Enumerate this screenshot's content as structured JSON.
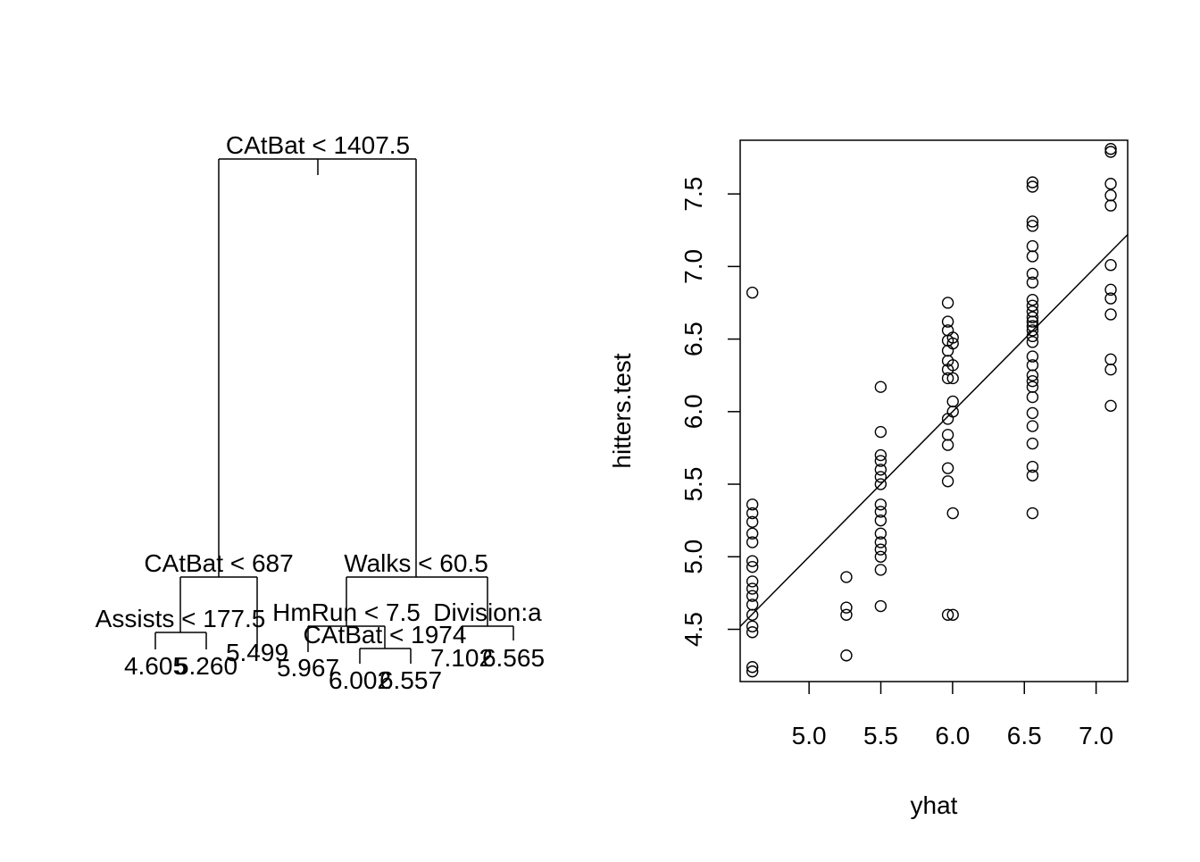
{
  "chart_data": [
    {
      "type": "tree",
      "nodes": [
        {
          "id": "root",
          "split": "CAtBat < 1407.5"
        },
        {
          "id": "L",
          "parent": "root",
          "split": "CAtBat < 687"
        },
        {
          "id": "R",
          "parent": "root",
          "split": "Walks < 60.5"
        },
        {
          "id": "LL",
          "parent": "L",
          "split": "Assists < 177.5"
        },
        {
          "id": "LR",
          "parent": "L",
          "leaf": "5.499"
        },
        {
          "id": "LLa",
          "parent": "LL",
          "leaf": "4.605"
        },
        {
          "id": "LLb",
          "parent": "LL",
          "leaf": "5.260"
        },
        {
          "id": "RL",
          "parent": "R",
          "split": "HmRun < 7.5"
        },
        {
          "id": "RR",
          "parent": "R",
          "split": "Division:a"
        },
        {
          "id": "RLa",
          "parent": "RL",
          "leaf": "5.967"
        },
        {
          "id": "RLb",
          "parent": "RL",
          "split": "CAtBat < 1974"
        },
        {
          "id": "RLba",
          "parent": "RLb",
          "leaf": "6.002"
        },
        {
          "id": "RLbb",
          "parent": "RLb",
          "leaf": "6.557"
        },
        {
          "id": "RRa",
          "parent": "RR",
          "leaf": "7.102"
        },
        {
          "id": "RRb",
          "parent": "RR",
          "leaf": "6.565"
        }
      ]
    },
    {
      "type": "scatter",
      "xlabel": "yhat",
      "ylabel": "hitters.test",
      "xlim": [
        4.52,
        7.22
      ],
      "ylim": [
        4.14,
        7.87
      ],
      "xticks": [
        "5.0",
        "5.5",
        "6.0",
        "6.5",
        "7.0"
      ],
      "yticks": [
        "4.5",
        "5.0",
        "5.5",
        "6.0",
        "6.5",
        "7.0",
        "7.5"
      ],
      "abline": {
        "intercept": 0,
        "slope": 1
      },
      "points": [
        [
          4.605,
          6.82
        ],
        [
          4.605,
          5.36
        ],
        [
          4.605,
          5.3
        ],
        [
          4.605,
          5.24
        ],
        [
          4.605,
          5.16
        ],
        [
          4.605,
          5.1
        ],
        [
          4.605,
          4.97
        ],
        [
          4.605,
          4.93
        ],
        [
          4.605,
          4.83
        ],
        [
          4.605,
          4.78
        ],
        [
          4.605,
          4.73
        ],
        [
          4.605,
          4.67
        ],
        [
          4.605,
          4.6
        ],
        [
          4.605,
          4.52
        ],
        [
          4.605,
          4.48
        ],
        [
          4.605,
          4.24
        ],
        [
          4.605,
          4.21
        ],
        [
          5.26,
          4.86
        ],
        [
          5.26,
          4.65
        ],
        [
          5.26,
          4.6
        ],
        [
          5.26,
          4.32
        ],
        [
          5.499,
          6.17
        ],
        [
          5.499,
          5.86
        ],
        [
          5.499,
          5.7
        ],
        [
          5.499,
          5.66
        ],
        [
          5.499,
          5.6
        ],
        [
          5.499,
          5.55
        ],
        [
          5.499,
          5.5
        ],
        [
          5.499,
          5.36
        ],
        [
          5.499,
          5.31
        ],
        [
          5.499,
          5.25
        ],
        [
          5.499,
          5.16
        ],
        [
          5.499,
          5.1
        ],
        [
          5.499,
          5.05
        ],
        [
          5.499,
          5.0
        ],
        [
          5.499,
          4.91
        ],
        [
          5.499,
          4.66
        ],
        [
          5.967,
          6.75
        ],
        [
          5.967,
          6.62
        ],
        [
          5.967,
          6.56
        ],
        [
          5.967,
          6.49
        ],
        [
          5.967,
          6.42
        ],
        [
          5.967,
          6.35
        ],
        [
          5.967,
          6.29
        ],
        [
          5.967,
          6.23
        ],
        [
          5.967,
          5.95
        ],
        [
          5.967,
          5.84
        ],
        [
          5.967,
          5.77
        ],
        [
          5.967,
          5.61
        ],
        [
          5.967,
          5.52
        ],
        [
          5.967,
          4.6
        ],
        [
          6.002,
          6.51
        ],
        [
          6.002,
          6.47
        ],
        [
          6.002,
          6.32
        ],
        [
          6.002,
          6.23
        ],
        [
          6.002,
          6.07
        ],
        [
          6.002,
          6.0
        ],
        [
          6.002,
          5.3
        ],
        [
          6.002,
          4.6
        ],
        [
          6.557,
          7.58
        ],
        [
          6.557,
          7.55
        ],
        [
          6.557,
          7.31
        ],
        [
          6.557,
          7.28
        ],
        [
          6.557,
          7.14
        ],
        [
          6.557,
          7.07
        ],
        [
          6.557,
          6.95
        ],
        [
          6.557,
          6.89
        ],
        [
          6.557,
          6.77
        ],
        [
          6.557,
          6.73
        ],
        [
          6.557,
          6.69
        ],
        [
          6.557,
          6.65
        ],
        [
          6.557,
          6.62
        ],
        [
          6.557,
          6.59
        ],
        [
          6.557,
          6.56
        ],
        [
          6.557,
          6.52
        ],
        [
          6.557,
          6.48
        ],
        [
          6.557,
          6.38
        ],
        [
          6.557,
          6.32
        ],
        [
          6.557,
          6.25
        ],
        [
          6.557,
          6.21
        ],
        [
          6.557,
          6.17
        ],
        [
          6.557,
          6.1
        ],
        [
          6.557,
          5.99
        ],
        [
          6.557,
          5.9
        ],
        [
          6.557,
          5.78
        ],
        [
          6.557,
          5.62
        ],
        [
          6.557,
          5.56
        ],
        [
          6.557,
          5.3
        ],
        [
          7.102,
          7.81
        ],
        [
          7.102,
          7.79
        ],
        [
          7.102,
          7.57
        ],
        [
          7.102,
          7.49
        ],
        [
          7.102,
          7.42
        ],
        [
          7.102,
          7.01
        ],
        [
          7.102,
          6.84
        ],
        [
          7.102,
          6.78
        ],
        [
          7.102,
          6.67
        ],
        [
          7.102,
          6.36
        ],
        [
          7.102,
          6.29
        ],
        [
          7.102,
          6.04
        ]
      ]
    }
  ]
}
